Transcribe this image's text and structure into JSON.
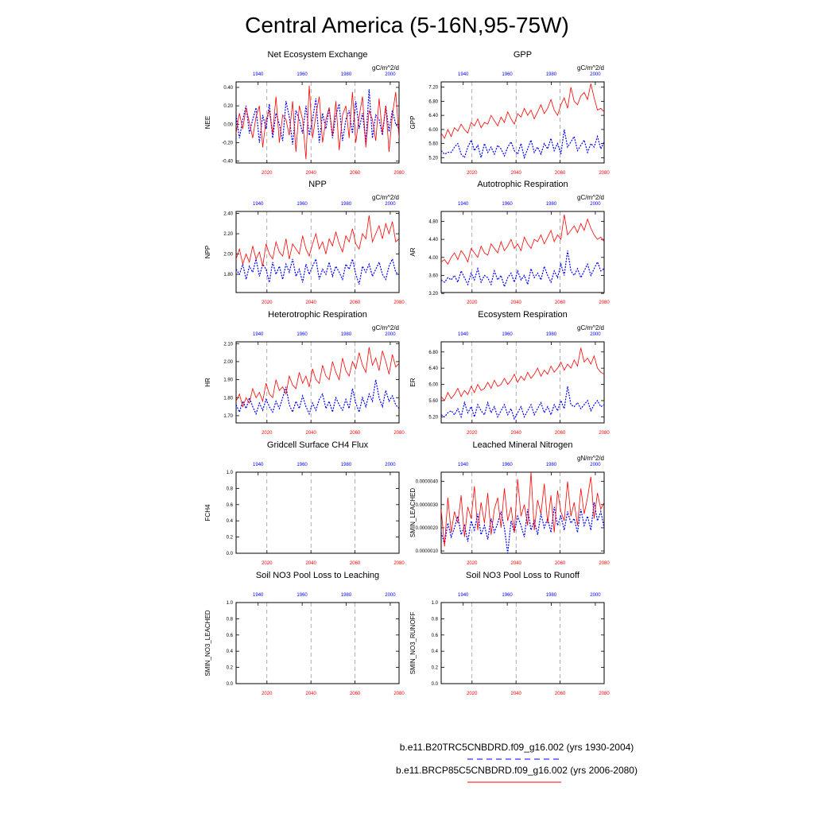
{
  "title": "Central America (5-16N,95-75W)",
  "colors": {
    "hist": "#0000ff",
    "proj": "#ff0000",
    "axis": "#000000",
    "grid": "#777777"
  },
  "x_axes": {
    "top_ticks": [
      "1940",
      "1960",
      "1980",
      "2000"
    ],
    "top_values": [
      1940,
      1960,
      1980,
      2000
    ],
    "top_range": [
      1930,
      2004
    ],
    "bottom_ticks": [
      "2020",
      "2040",
      "2060",
      "2080"
    ],
    "bottom_values": [
      2020,
      2040,
      2060,
      2080
    ],
    "bottom_range": [
      2006,
      2080
    ]
  },
  "legend": [
    {
      "label": "b.e11.B20TRC5CNBDRD.f09_g16.002 (yrs 1930-2004)",
      "style": "dashed",
      "color": "#0000ff"
    },
    {
      "label": "b.e11.BRCP85C5CNBDRD.f09_g16.002 (yrs 2006-2080)",
      "style": "solid",
      "color": "#ff0000"
    }
  ],
  "chart_data": [
    {
      "type": "line",
      "title": "Net Ecosystem Exchange",
      "ylabel": "NEE",
      "units": "gC/m^2/d",
      "ylim": [
        -0.42,
        0.46
      ],
      "yticks": [
        "-0.40",
        "-0.20",
        "0.00",
        "0.20",
        "0.40"
      ],
      "ytick_values": [
        -0.4,
        -0.2,
        0,
        0.2,
        0.4
      ],
      "series": [
        {
          "name": "hist",
          "values": [
            0.1,
            -0.15,
            0.05,
            0.2,
            -0.1,
            0.05,
            0.18,
            -0.2,
            0.1,
            -0.05,
            0.22,
            -0.15,
            0.12,
            0.0,
            -0.18,
            0.25,
            0.08,
            -0.22,
            0.15,
            0.05,
            -0.1,
            0.2,
            -0.12,
            0.05,
            0.28,
            -0.2,
            0.12,
            -0.05,
            0.18,
            -0.15,
            0.1,
            0.22,
            -0.18,
            0.05,
            0.15,
            -0.1,
            0.25,
            -0.05,
            0.12,
            -0.2,
            0.38,
            -0.15,
            0.1,
            0.05,
            -0.12,
            0.2,
            -0.08,
            0.15,
            0.0,
            -0.05
          ]
        },
        {
          "name": "proj",
          "values": [
            -0.1,
            0.12,
            -0.05,
            0.18,
            0.02,
            -0.15,
            0.08,
            0.2,
            -0.25,
            0.05,
            0.15,
            -0.1,
            0.3,
            -0.2,
            0.1,
            0.05,
            -0.12,
            0.25,
            -0.3,
            0.2,
            0.05,
            -0.38,
            0.42,
            -0.15,
            0.1,
            0.3,
            -0.2,
            0.05,
            0.18,
            -0.12,
            0.25,
            -0.28,
            0.1,
            0.2,
            -0.15,
            0.35,
            -0.2,
            0.08,
            0.3,
            -0.25,
            0.15,
            0.05,
            -0.18,
            0.28,
            -0.1,
            0.2,
            -0.3,
            0.1,
            0.35,
            -0.15
          ]
        }
      ]
    },
    {
      "type": "line",
      "title": "GPP",
      "ylabel": "GPP",
      "units": "gC/m^2/d",
      "ylim": [
        5.05,
        7.35
      ],
      "yticks": [
        "5.20",
        "5.60",
        "6.00",
        "6.40",
        "6.80",
        "7.20"
      ],
      "ytick_values": [
        5.2,
        5.6,
        6.0,
        6.4,
        6.8,
        7.2
      ],
      "series": [
        {
          "name": "hist",
          "values": [
            5.4,
            5.3,
            5.35,
            5.35,
            5.5,
            5.6,
            5.3,
            5.2,
            5.5,
            5.7,
            5.4,
            5.55,
            5.2,
            5.6,
            5.35,
            5.5,
            5.3,
            5.55,
            5.45,
            5.25,
            5.5,
            5.65,
            5.4,
            5.3,
            5.6,
            5.2,
            5.45,
            5.7,
            5.35,
            5.5,
            5.3,
            5.6,
            5.45,
            5.75,
            5.4,
            5.6,
            5.3,
            6.0,
            5.5,
            5.65,
            5.8,
            5.4,
            5.55,
            5.7,
            5.35,
            5.6,
            5.5,
            5.8,
            5.45,
            5.65
          ]
        },
        {
          "name": "proj",
          "values": [
            5.9,
            5.75,
            6.0,
            5.8,
            6.05,
            5.95,
            6.15,
            6.0,
            5.9,
            6.2,
            6.1,
            6.3,
            6.05,
            6.2,
            6.15,
            6.4,
            6.25,
            6.1,
            6.35,
            6.2,
            6.5,
            6.3,
            6.15,
            6.45,
            6.35,
            6.6,
            6.4,
            6.55,
            6.3,
            6.5,
            6.7,
            6.45,
            6.6,
            6.85,
            6.55,
            6.4,
            6.7,
            6.9,
            6.6,
            7.2,
            6.8,
            6.7,
            6.95,
            7.05,
            6.85,
            7.3,
            6.9,
            6.55,
            6.6,
            6.5
          ]
        }
      ]
    },
    {
      "type": "line",
      "title": "NPP",
      "ylabel": "NPP",
      "units": "gC/m^2/d",
      "ylim": [
        1.62,
        2.42
      ],
      "yticks": [
        "1.80",
        "2.00",
        "2.20",
        "2.40"
      ],
      "ytick_values": [
        1.8,
        2.0,
        2.2,
        2.4
      ],
      "series": [
        {
          "name": "hist",
          "values": [
            1.85,
            1.8,
            1.9,
            1.75,
            1.88,
            1.82,
            1.95,
            1.78,
            1.9,
            1.85,
            1.72,
            1.92,
            1.8,
            1.88,
            1.75,
            1.9,
            1.82,
            1.95,
            1.78,
            1.85,
            1.72,
            1.9,
            1.8,
            1.88,
            1.95,
            1.75,
            1.85,
            1.8,
            1.92,
            1.78,
            1.88,
            1.82,
            1.75,
            1.9,
            1.85,
            1.95,
            1.8,
            1.7,
            1.88,
            1.82,
            1.9,
            1.78,
            1.85,
            1.92,
            1.8,
            1.75,
            1.88,
            1.95,
            1.82,
            1.8
          ]
        },
        {
          "name": "proj",
          "values": [
            1.95,
            2.05,
            1.9,
            2.0,
            1.92,
            2.08,
            1.95,
            2.02,
            1.88,
            2.1,
            2.0,
            1.95,
            2.12,
            2.02,
            1.98,
            2.15,
            1.95,
            2.1,
            2.05,
            2.0,
            2.18,
            2.05,
            1.98,
            2.1,
            2.2,
            2.05,
            2.12,
            2.0,
            2.15,
            2.08,
            2.22,
            2.1,
            2.02,
            2.18,
            2.12,
            2.25,
            2.1,
            2.05,
            2.2,
            2.15,
            2.38,
            2.12,
            2.2,
            2.28,
            2.15,
            2.3,
            2.2,
            2.32,
            2.12,
            2.15
          ]
        }
      ]
    },
    {
      "type": "line",
      "title": "Autotrophic Respiration",
      "ylabel": "AR",
      "units": "gC/m^2/d",
      "ylim": [
        3.22,
        5.02
      ],
      "yticks": [
        "3.20",
        "3.60",
        "4.00",
        "4.40",
        "4.80"
      ],
      "ytick_values": [
        3.2,
        3.6,
        4.0,
        4.4,
        4.8
      ],
      "series": [
        {
          "name": "hist",
          "values": [
            3.5,
            3.45,
            3.55,
            3.5,
            3.6,
            3.45,
            3.7,
            3.55,
            3.4,
            3.65,
            3.5,
            3.75,
            3.45,
            3.6,
            3.55,
            3.4,
            3.7,
            3.5,
            3.6,
            3.35,
            3.55,
            3.65,
            3.45,
            3.7,
            3.5,
            3.6,
            3.4,
            3.75,
            3.55,
            3.65,
            3.5,
            3.8,
            3.6,
            3.45,
            3.7,
            3.55,
            3.85,
            3.6,
            4.15,
            3.7,
            3.6,
            3.75,
            3.55,
            3.7,
            3.85,
            3.6,
            3.75,
            3.9,
            3.7,
            3.75
          ]
        },
        {
          "name": "proj",
          "values": [
            3.9,
            3.95,
            3.85,
            4.0,
            4.1,
            3.95,
            4.15,
            4.05,
            3.9,
            4.2,
            4.1,
            4.0,
            4.25,
            4.1,
            4.05,
            4.3,
            4.2,
            4.1,
            4.35,
            4.15,
            4.25,
            4.4,
            4.2,
            4.3,
            4.15,
            4.45,
            4.3,
            4.2,
            4.4,
            4.35,
            4.5,
            4.3,
            4.45,
            4.6,
            4.35,
            4.5,
            4.4,
            4.95,
            4.5,
            4.6,
            4.7,
            4.55,
            4.75,
            4.6,
            4.85,
            4.65,
            4.5,
            4.4,
            4.45,
            4.35
          ]
        }
      ]
    },
    {
      "type": "line",
      "title": "Heterotrophic Respiration",
      "ylabel": "HR",
      "units": "gC/m^2/d",
      "ylim": [
        1.66,
        2.11
      ],
      "yticks": [
        "1.70",
        "1.80",
        "1.90",
        "2.00",
        "2.10"
      ],
      "ytick_values": [
        1.7,
        1.8,
        1.9,
        2.0,
        2.1
      ],
      "series": [
        {
          "name": "hist",
          "values": [
            1.76,
            1.72,
            1.78,
            1.74,
            1.8,
            1.75,
            1.71,
            1.77,
            1.73,
            1.79,
            1.75,
            1.72,
            1.78,
            1.74,
            1.8,
            1.86,
            1.76,
            1.72,
            1.78,
            1.74,
            1.81,
            1.75,
            1.71,
            1.77,
            1.73,
            1.79,
            1.82,
            1.74,
            1.78,
            1.72,
            1.8,
            1.76,
            1.73,
            1.79,
            1.74,
            1.85,
            1.77,
            1.72,
            1.8,
            1.75,
            1.82,
            1.78,
            1.9,
            1.8,
            1.75,
            1.84,
            1.78,
            1.81,
            1.76,
            1.74
          ]
        },
        {
          "name": "proj",
          "values": [
            1.78,
            1.82,
            1.75,
            1.8,
            1.77,
            1.85,
            1.8,
            1.83,
            1.78,
            1.88,
            1.82,
            1.8,
            1.9,
            1.84,
            1.86,
            1.82,
            1.92,
            1.87,
            1.85,
            1.94,
            1.88,
            1.92,
            1.86,
            1.96,
            1.9,
            1.88,
            1.98,
            1.92,
            1.9,
            2.0,
            1.94,
            1.9,
            2.02,
            1.95,
            1.92,
            2.0,
            1.96,
            2.05,
            1.98,
            1.94,
            2.08,
            1.98,
            2.02,
            1.95,
            2.06,
            2.0,
            1.93,
            2.04,
            1.97,
            1.99
          ]
        }
      ]
    },
    {
      "type": "line",
      "title": "Ecosystem Respiration",
      "ylabel": "ER",
      "units": "gC/m^2/d",
      "ylim": [
        5.05,
        7.05
      ],
      "yticks": [
        "5.20",
        "5.60",
        "6.00",
        "6.40",
        "6.80"
      ],
      "ytick_values": [
        5.2,
        5.6,
        6.0,
        6.4,
        6.8
      ],
      "series": [
        {
          "name": "hist",
          "values": [
            5.25,
            5.2,
            5.3,
            5.35,
            5.25,
            5.4,
            5.2,
            5.55,
            5.3,
            5.45,
            5.2,
            5.5,
            5.35,
            5.25,
            5.55,
            5.3,
            5.45,
            5.2,
            5.35,
            5.5,
            5.25,
            5.4,
            5.15,
            5.3,
            5.45,
            5.2,
            5.35,
            5.5,
            5.25,
            5.4,
            5.55,
            5.3,
            5.45,
            5.25,
            5.5,
            5.35,
            5.6,
            5.4,
            5.95,
            5.5,
            5.45,
            5.55,
            5.4,
            5.5,
            5.6,
            5.35,
            5.5,
            5.6,
            5.45,
            5.5
          ]
        },
        {
          "name": "proj",
          "values": [
            5.7,
            5.6,
            5.8,
            5.65,
            5.75,
            5.9,
            5.7,
            5.85,
            5.75,
            5.95,
            5.8,
            6.0,
            5.85,
            5.9,
            6.05,
            5.9,
            6.1,
            5.95,
            6.0,
            6.15,
            6.0,
            6.1,
            6.25,
            6.05,
            6.2,
            6.1,
            6.3,
            6.15,
            6.25,
            6.4,
            6.2,
            6.35,
            6.25,
            6.45,
            6.3,
            6.4,
            6.55,
            6.35,
            6.5,
            6.4,
            6.6,
            6.45,
            6.9,
            6.55,
            6.65,
            6.5,
            6.7,
            6.4,
            6.3,
            6.25
          ]
        }
      ]
    },
    {
      "type": "line",
      "title": "Gridcell Surface CH4 Flux",
      "ylabel": "FCH4",
      "units": "",
      "ylim": [
        0.0,
        1.0
      ],
      "yticks": [
        "0.0",
        "0.2",
        "0.4",
        "0.6",
        "0.8",
        "1.0"
      ],
      "ytick_values": [
        0,
        0.2,
        0.4,
        0.6,
        0.8,
        1.0
      ],
      "series": []
    },
    {
      "type": "line",
      "title": "Leached Mineral Nitrogen",
      "ylabel": "SMIN_LEACHED",
      "units": "gN/m^2/d",
      "ylim": [
        9e-07,
        4.4e-06
      ],
      "yticks": [
        "0.0000010",
        "0.0000020",
        "0.0000030",
        "0.0000040"
      ],
      "ytick_values": [
        1e-06,
        2e-06,
        3e-06,
        4e-06
      ],
      "series": [
        {
          "name": "hist",
          "values": [
            1.8e-06,
            1.3e-06,
            2.2e-06,
            1.6e-06,
            2e-06,
            2.5e-06,
            1.7e-06,
            2.1e-06,
            1.4e-06,
            2.3e-06,
            1.9e-06,
            2.6e-06,
            1.7e-06,
            2.1e-06,
            1.5e-06,
            2.4e-06,
            1.8e-06,
            2.2e-06,
            2.7e-06,
            2e-06,
            9e-07,
            2.3e-06,
            1.8e-06,
            2.5e-06,
            2.1e-06,
            1.6e-06,
            2.8e-06,
            1.9e-06,
            2.3e-06,
            1.7e-06,
            2.6e-06,
            2e-06,
            2.4e-06,
            1.8e-06,
            2.9e-06,
            2.1e-06,
            2.5e-06,
            1.9e-06,
            2.7e-06,
            2.2e-06,
            2.4e-06,
            1.8e-06,
            2.8e-06,
            2.1e-06,
            2.5e-06,
            1.9e-06,
            3.1e-06,
            2.3e-06,
            2.7e-06,
            2e-06
          ]
        },
        {
          "name": "proj",
          "values": [
            2.8e-06,
            1.2e-06,
            3.3e-06,
            1.8e-06,
            2.7e-06,
            2.2e-06,
            3.4e-06,
            1.6e-06,
            2.9e-06,
            2.4e-06,
            3.8e-06,
            1.9e-06,
            3.1e-06,
            2.2e-06,
            3.5e-06,
            1.7e-06,
            2.8e-06,
            3.3e-06,
            2e-06,
            3.7e-06,
            2.3e-06,
            2.9e-06,
            1.8e-06,
            4.1e-06,
            2.5e-06,
            3e-06,
            2.1e-06,
            4.4e-06,
            1.9e-06,
            3.2e-06,
            2.6e-06,
            3.9e-06,
            2.2e-06,
            3.4e-06,
            1.8e-06,
            3.6e-06,
            2.7e-06,
            2.3e-06,
            4e-06,
            2.5e-06,
            3.1e-06,
            2.1e-06,
            3.7e-06,
            2.6e-06,
            3.3e-06,
            4.2e-06,
            2.4e-06,
            3.5e-06,
            2.8e-06,
            3.1e-06
          ]
        }
      ]
    },
    {
      "type": "line",
      "title": "Soil NO3 Pool Loss to Leaching",
      "ylabel": "SMIN_NO3_LEACHED",
      "units": "",
      "ylim": [
        0.0,
        1.0
      ],
      "yticks": [
        "0.0",
        "0.2",
        "0.4",
        "0.6",
        "0.8",
        "1.0"
      ],
      "ytick_values": [
        0,
        0.2,
        0.4,
        0.6,
        0.8,
        1.0
      ],
      "series": []
    },
    {
      "type": "line",
      "title": "Soil NO3 Pool Loss to Runoff",
      "ylabel": "SMIN_NO3_RUNOFF",
      "units": "",
      "ylim": [
        0.0,
        1.0
      ],
      "yticks": [
        "0.0",
        "0.2",
        "0.4",
        "0.6",
        "0.8",
        "1.0"
      ],
      "ytick_values": [
        0,
        0.2,
        0.4,
        0.6,
        0.8,
        1.0
      ],
      "series": []
    }
  ]
}
